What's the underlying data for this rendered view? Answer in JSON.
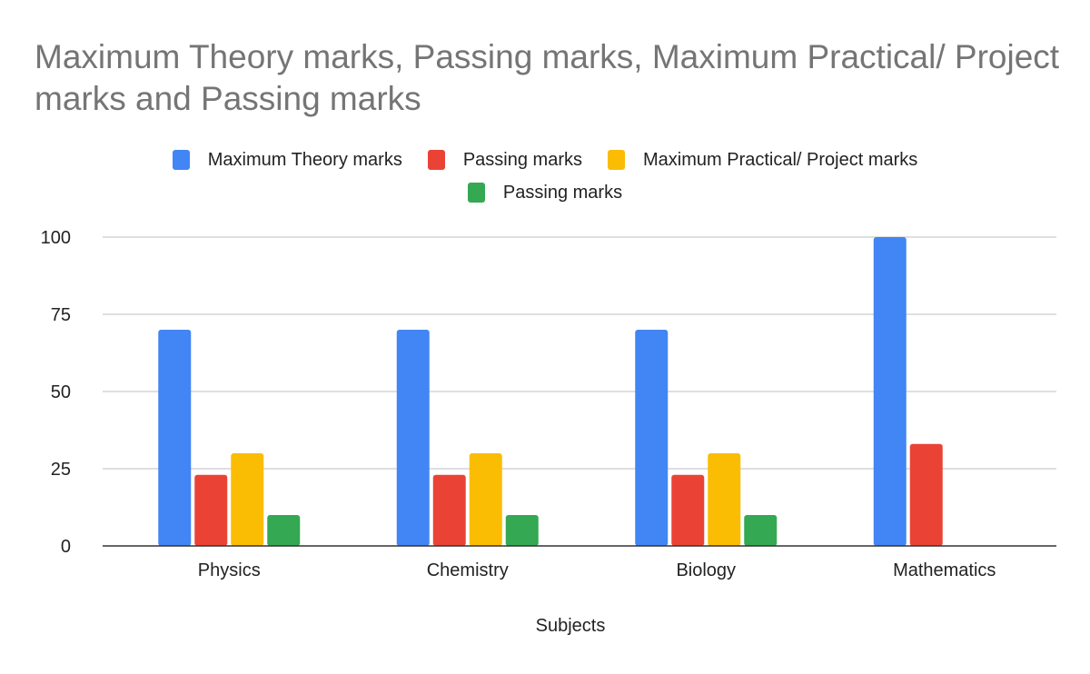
{
  "chart_data": {
    "type": "bar",
    "title": "Maximum Theory marks, Passing marks, Maximum Practical/ Project marks and Passing marks",
    "xlabel": "Subjects",
    "ylabel": "",
    "ylim": [
      0,
      100
    ],
    "yticks": [
      0,
      25,
      50,
      75,
      100
    ],
    "grid": true,
    "legend_position": "top",
    "categories": [
      "Physics",
      "Chemistry",
      "Biology",
      "Mathematics"
    ],
    "series": [
      {
        "name": "Maximum Theory marks",
        "color": "#4285f4",
        "values": [
          70,
          70,
          70,
          100
        ]
      },
      {
        "name": "Passing marks",
        "color": "#ea4335",
        "values": [
          23,
          23,
          23,
          33
        ]
      },
      {
        "name": "Maximum Practical/ Project marks",
        "color": "#fbbc04",
        "values": [
          30,
          30,
          30,
          0
        ]
      },
      {
        "name": "Passing marks",
        "color": "#34a853",
        "values": [
          10,
          10,
          10,
          0
        ]
      }
    ]
  }
}
